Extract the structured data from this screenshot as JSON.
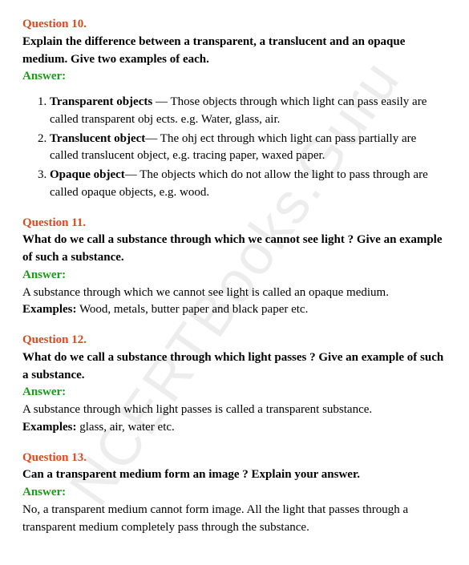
{
  "watermark": "NCERTBooks.Guru",
  "q10": {
    "label": "Question 10.",
    "text": "Explain the difference between a transparent, a translucent and an opaque medium. Give two examples of each.",
    "answer_label": "Answer:",
    "items": [
      {
        "term": "Transparent objects",
        "sep": " — ",
        "body": "Those objects through which light can pass easily are called transparent obj ects. e.g. Water, glass, air."
      },
      {
        "term": "Translucent object",
        "sep": "— ",
        "body": "The ohj ect through which light can pass partially are called translucent object, e.g. tracing paper, waxed paper."
      },
      {
        "term": "Opaque object",
        "sep": "— ",
        "body": "The objects which do not allow the light to pass through are called opaque objects, e.g. wood."
      }
    ]
  },
  "q11": {
    "label": "Question 11.",
    "text": "What do we call a substance through which we cannot see light ? Give an example of such a substance.",
    "answer_label": "Answer:",
    "body": "A substance through which we cannot see light is called an opaque medium.",
    "examples_label": "Examples:",
    "examples": "  Wood, metals, butter paper and black paper etc."
  },
  "q12": {
    "label": "Question 12.",
    "text": "What do we call a substance through which light passes ? Give an example of such a substance.",
    "answer_label": "Answer:",
    "body": "A substance through which light passes is called a transparent substance.",
    "examples_label": "Examples:",
    "examples": " glass, air, water etc."
  },
  "q13": {
    "label": "Question 13.",
    "text": "Can a transparent medium form an image ? Explain your answer.",
    "answer_label": "Answer:",
    "body": "No, a transparent medium cannot form image. All the light that passes through a transparent medium completely pass through the substance."
  }
}
